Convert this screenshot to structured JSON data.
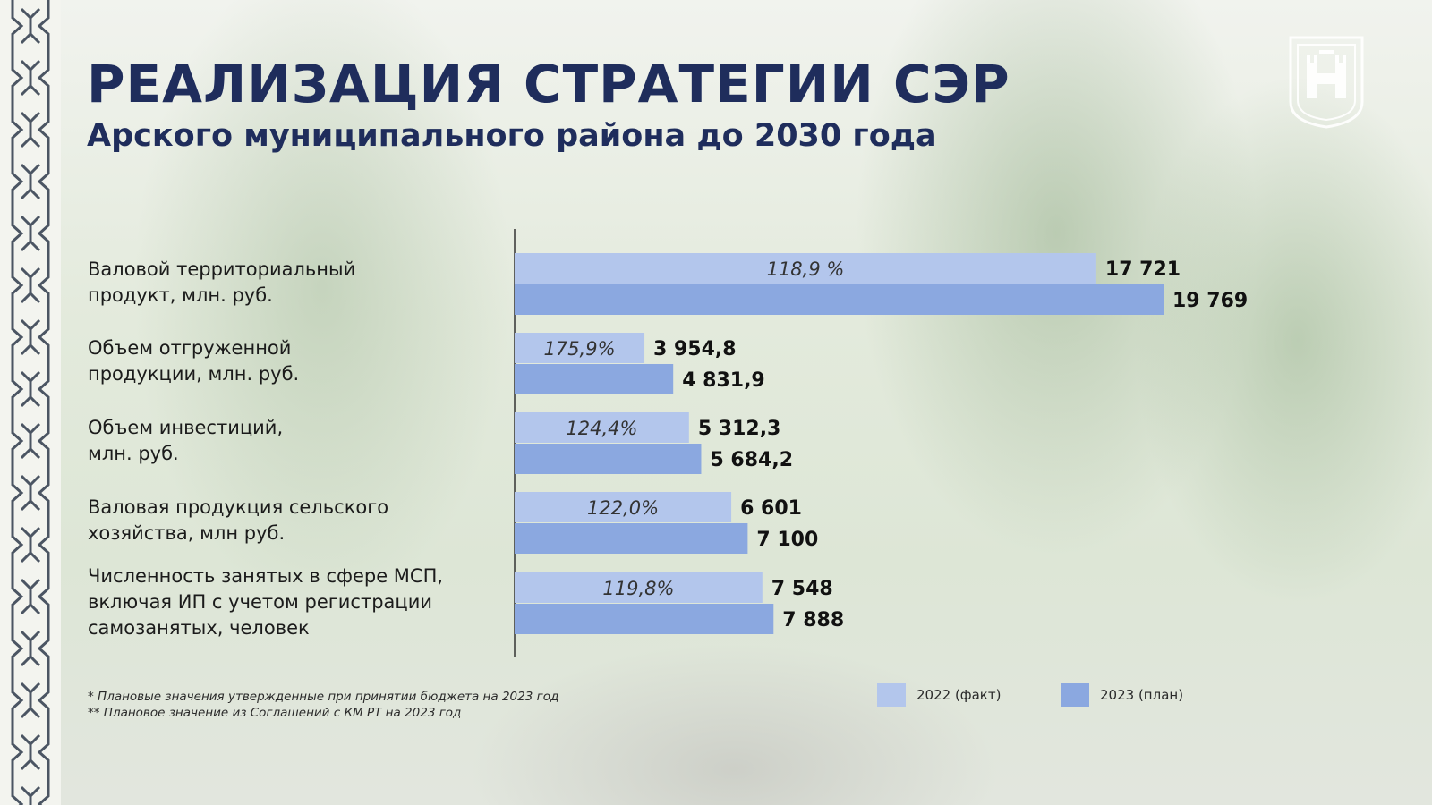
{
  "title": "РЕАЛИЗАЦИЯ СТРАТЕГИИ СЭР",
  "subtitle": "Арского муниципального района до 2030 года",
  "categories": [
    {
      "lines": [
        "Валовой территориальный",
        "продукт, млн. руб."
      ]
    },
    {
      "lines": [
        "Объем отгруженной",
        "продукции, млн. руб."
      ]
    },
    {
      "lines": [
        "Объем инвестиций,",
        "млн. руб."
      ]
    },
    {
      "lines": [
        "Валовая продукция сельского",
        "хозяйства, млн руб."
      ]
    },
    {
      "lines": [
        "Численность занятых в сфере МСП,",
        "включая ИП с учетом регистрации",
        "самозанятых, человек"
      ]
    }
  ],
  "footnotes": [
    "*  Плановые значения утвержденные при принятии бюджета на 2023 год",
    "** Плановое значение из Соглашений с КМ РТ на 2023 год"
  ],
  "legend": [
    {
      "label": "2022 (факт)"
    },
    {
      "label": "2023 (план)"
    }
  ],
  "colors": {
    "fact_2022": "#b3c6ec",
    "plan_2023": "#8ba8e0",
    "title": "#1f2d5c"
  },
  "chart_data": {
    "type": "bar",
    "orientation": "horizontal",
    "title": "РЕАЛИЗАЦИЯ СТРАТЕГИИ СЭР",
    "subtitle": "Арского муниципального района до 2030 года",
    "categories": [
      "Валовой территориальный продукт, млн. руб.",
      "Объем отгруженной продукции, млн. руб.",
      "Объем инвестиций, млн. руб.",
      "Валовая продукция сельского хозяйства, млн руб.",
      "Численность занятых в сфере МСП, включая ИП с учетом регистрации самозанятых, человек"
    ],
    "series": [
      {
        "name": "2022 (факт)",
        "values": [
          17721,
          3954.8,
          5312.3,
          6601,
          7548
        ],
        "value_labels": [
          "17 721",
          "3 954,8",
          "5 312,3",
          "6 601",
          "7 548"
        ],
        "percent_labels": [
          "118,9 %",
          "175,9%",
          "124,4%",
          "122,0%",
          "119,8%"
        ]
      },
      {
        "name": "2023 (план)",
        "values": [
          19769,
          4831.9,
          5684.2,
          7100,
          7888
        ],
        "value_labels": [
          "19 769",
          "4 831,9",
          "5 684,2",
          "7 100",
          "7 888"
        ]
      }
    ],
    "legend_position": "bottom-right",
    "grid": false
  }
}
